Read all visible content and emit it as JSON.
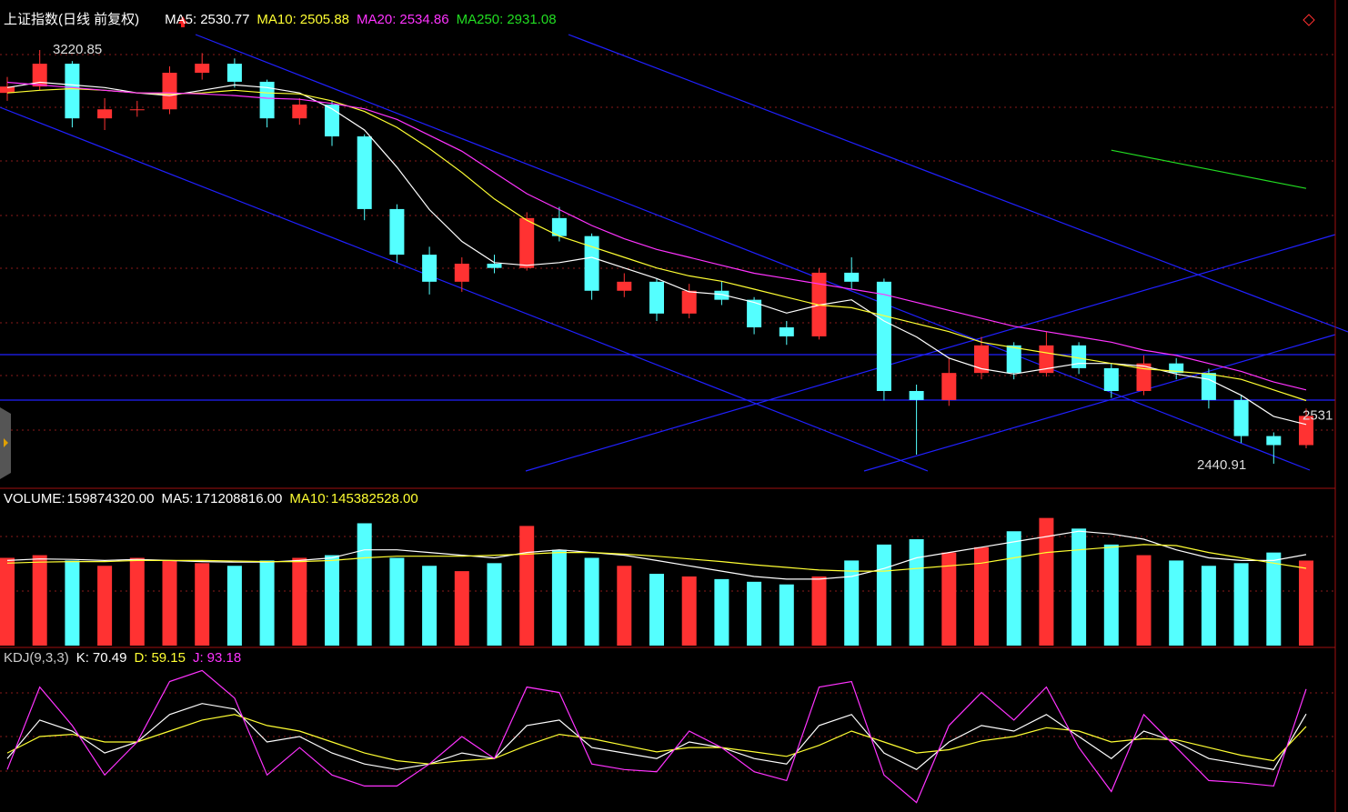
{
  "chart_data": [
    {
      "type": "candlestick",
      "title": "上证指数(日线 前复权)",
      "open": [
        3140,
        3152,
        3195,
        3092,
        3109,
        3109,
        3178,
        3195,
        3161,
        3092,
        3118,
        3058,
        2921,
        2835,
        2784,
        2818,
        2810,
        2904,
        2870,
        2767,
        2784,
        2724,
        2767,
        2750,
        2698,
        2681,
        2801,
        2784,
        2578,
        2561,
        2612,
        2664,
        2612,
        2664,
        2621,
        2578,
        2630,
        2612,
        2561,
        2493,
        2476
      ],
      "high": [
        3170,
        3220.85,
        3200,
        3130,
        3125,
        3190,
        3215,
        3205,
        3165,
        3130,
        3125,
        3062,
        2930,
        2850,
        2830,
        2835,
        2915,
        2925,
        2875,
        2800,
        2790,
        2780,
        2785,
        2755,
        2710,
        2810,
        2830,
        2790,
        2590,
        2640,
        2680,
        2670,
        2690,
        2670,
        2630,
        2645,
        2640,
        2620,
        2570,
        2500,
        2545
      ],
      "low": [
        3125,
        3145,
        3075,
        3070,
        3095,
        3100,
        3165,
        3150,
        3075,
        3080,
        3040,
        2900,
        2820,
        2760,
        2765,
        2800,
        2805,
        2860,
        2750,
        2755,
        2710,
        2715,
        2740,
        2685,
        2665,
        2675,
        2770,
        2560,
        2458,
        2550,
        2600,
        2600,
        2605,
        2610,
        2565,
        2570,
        2600,
        2545,
        2480,
        2440.91,
        2470
      ],
      "close": [
        3152,
        3195,
        3092,
        3109,
        3109,
        3178,
        3195,
        3161,
        3092,
        3118,
        3058,
        2921,
        2835,
        2784,
        2818,
        2810,
        2904,
        2870,
        2767,
        2784,
        2724,
        2767,
        2750,
        2698,
        2681,
        2801,
        2784,
        2578,
        2561,
        2612,
        2664,
        2612,
        2664,
        2621,
        2578,
        2630,
        2612,
        2561,
        2493,
        2476,
        2531
      ],
      "up_color": "#ff3232",
      "down_color": "#54ffff",
      "ylim": [
        2398,
        3298
      ],
      "annotations": [
        3220.85,
        2440.91,
        2531
      ],
      "series": [
        {
          "name": "MA5:",
          "legend_value": 2530.77,
          "color": "#ffffff",
          "values": [
            3150,
            3160,
            3155,
            3150,
            3140,
            3135,
            3145,
            3155,
            3150,
            3140,
            3110,
            3070,
            3000,
            2920,
            2860,
            2820,
            2815,
            2820,
            2830,
            2810,
            2790,
            2765,
            2760,
            2745,
            2725,
            2740,
            2750,
            2710,
            2680,
            2640,
            2620,
            2610,
            2620,
            2630,
            2630,
            2625,
            2610,
            2600,
            2570,
            2530,
            2515
          ]
        },
        {
          "name": "MA10:",
          "legend_value": 2505.88,
          "color": "#ffff33",
          "values": [
            3140,
            3145,
            3148,
            3145,
            3140,
            3138,
            3140,
            3145,
            3140,
            3138,
            3125,
            3105,
            3075,
            3035,
            2990,
            2940,
            2900,
            2870,
            2850,
            2830,
            2810,
            2795,
            2785,
            2770,
            2755,
            2740,
            2735,
            2720,
            2705,
            2690,
            2670,
            2660,
            2650,
            2640,
            2630,
            2620,
            2615,
            2610,
            2600,
            2580,
            2560
          ]
        },
        {
          "name": "MA20:",
          "legend_value": 2534.86,
          "color": "#ff33ff",
          "values": [
            3160,
            3155,
            3150,
            3145,
            3140,
            3140,
            3138,
            3135,
            3130,
            3128,
            3120,
            3110,
            3090,
            3060,
            3030,
            2990,
            2950,
            2920,
            2890,
            2865,
            2845,
            2830,
            2815,
            2800,
            2790,
            2780,
            2770,
            2760,
            2745,
            2730,
            2715,
            2700,
            2690,
            2680,
            2670,
            2655,
            2645,
            2630,
            2615,
            2595,
            2580
          ]
        },
        {
          "name": "MA250:",
          "legend_value": 2931.08,
          "color": "#22dd22",
          "values": [
            null,
            null,
            null,
            null,
            null,
            null,
            null,
            null,
            null,
            null,
            null,
            null,
            null,
            null,
            null,
            null,
            null,
            null,
            null,
            null,
            null,
            null,
            null,
            null,
            null,
            null,
            null,
            null,
            null,
            null,
            null,
            null,
            null,
            null,
            3032,
            3020,
            3008,
            2996,
            2984,
            2972,
            2960
          ]
        }
      ]
    },
    {
      "type": "bar",
      "title": "VOLUME:",
      "title_value": {
        "value": 159874320,
        "label": "159874320.00"
      },
      "values": [
        165000000,
        170000000,
        160000000,
        150000000,
        165000000,
        160000000,
        155000000,
        150000000,
        160000000,
        165000000,
        170000000,
        230000000,
        165000000,
        150000000,
        140000000,
        155000000,
        225000000,
        180000000,
        165000000,
        150000000,
        135000000,
        130000000,
        125000000,
        120000000,
        115000000,
        130000000,
        160000000,
        190000000,
        200000000,
        175000000,
        185000000,
        215000000,
        240000000,
        220000000,
        190000000,
        170000000,
        160000000,
        150000000,
        155000000,
        175000000,
        159874320
      ],
      "ylim": [
        0,
        265000000
      ],
      "series": [
        {
          "name": "MA5:",
          "legend_value": {
            "value": 171208816,
            "label": "171208816.00"
          },
          "color": "#ffffff",
          "values": [
            160000000,
            163000000,
            162000000,
            160000000,
            162000000,
            160000000,
            158000000,
            157000000,
            157000000,
            160000000,
            165000000,
            180000000,
            180000000,
            175000000,
            170000000,
            165000000,
            175000000,
            180000000,
            175000000,
            170000000,
            160000000,
            150000000,
            140000000,
            130000000,
            125000000,
            125000000,
            130000000,
            145000000,
            165000000,
            175000000,
            185000000,
            195000000,
            205000000,
            215000000,
            210000000,
            200000000,
            180000000,
            165000000,
            160000000,
            160000000,
            171208816
          ]
        },
        {
          "name": "MA10:",
          "legend_value": {
            "value": 145382528,
            "label": "145382528.00"
          },
          "color": "#ffff33",
          "values": [
            155000000,
            157000000,
            158000000,
            158000000,
            160000000,
            160000000,
            160000000,
            159000000,
            158000000,
            158000000,
            160000000,
            165000000,
            168000000,
            168000000,
            168000000,
            170000000,
            172000000,
            175000000,
            175000000,
            172000000,
            168000000,
            163000000,
            158000000,
            152000000,
            147000000,
            142000000,
            140000000,
            140000000,
            145000000,
            150000000,
            155000000,
            165000000,
            175000000,
            180000000,
            185000000,
            190000000,
            188000000,
            175000000,
            165000000,
            155000000,
            145382528
          ]
        }
      ]
    },
    {
      "type": "line",
      "title": "KDJ(9,3,3)",
      "ylim": [
        -12,
        112
      ],
      "series": [
        {
          "name": "K:",
          "legend_value": 70.49,
          "color": "#ffffff",
          "values": [
            30,
            65,
            55,
            35,
            45,
            70,
            80,
            75,
            45,
            50,
            35,
            25,
            20,
            25,
            35,
            30,
            60,
            65,
            40,
            35,
            30,
            45,
            40,
            30,
            25,
            60,
            70,
            35,
            20,
            45,
            60,
            55,
            70,
            50,
            30,
            55,
            45,
            30,
            25,
            20,
            70.49
          ]
        },
        {
          "name": "D:",
          "legend_value": 59.15,
          "color": "#ffff33",
          "values": [
            35,
            50,
            52,
            45,
            45,
            55,
            65,
            70,
            60,
            55,
            45,
            35,
            28,
            25,
            28,
            30,
            42,
            52,
            48,
            42,
            36,
            40,
            40,
            36,
            32,
            42,
            55,
            45,
            35,
            38,
            46,
            50,
            58,
            55,
            45,
            48,
            47,
            40,
            33,
            28,
            59.15
          ]
        },
        {
          "name": "J:",
          "legend_value": 93.18,
          "color": "#ff33ff",
          "values": [
            20,
            95,
            60,
            15,
            45,
            100,
            110,
            85,
            15,
            40,
            15,
            5,
            5,
            25,
            50,
            30,
            95,
            90,
            25,
            20,
            18,
            55,
            40,
            18,
            10,
            95,
            100,
            15,
            -10,
            60,
            90,
            65,
            95,
            40,
            0,
            70,
            40,
            10,
            8,
            5,
            93.18
          ]
        }
      ]
    }
  ]
}
